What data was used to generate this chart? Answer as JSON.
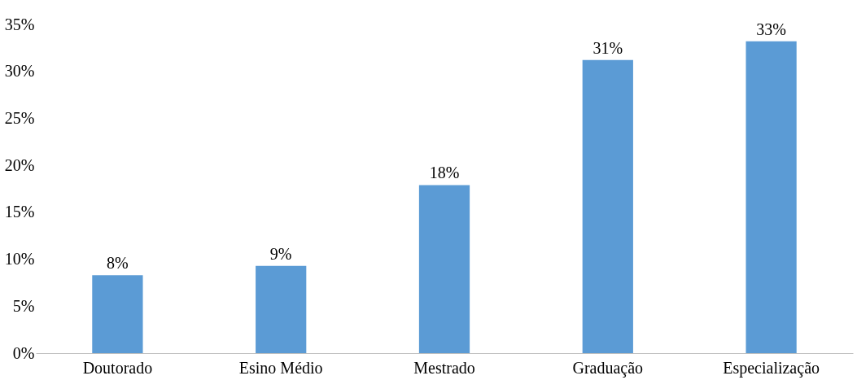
{
  "chart_data": {
    "type": "bar",
    "categories": [
      "Doutorado",
      "Esino Médio",
      "Mestrado",
      "Graduação",
      "Especialização"
    ],
    "values": [
      8.3,
      9.3,
      17.9,
      31.2,
      33.2
    ],
    "value_labels": [
      "8%",
      "9%",
      "18%",
      "31%",
      "33%"
    ],
    "color": "#5b9bd5",
    "ylim": [
      0,
      35
    ],
    "yticks": [
      {
        "value": 0,
        "label": "0%"
      },
      {
        "value": 5,
        "label": "5%"
      },
      {
        "value": 10,
        "label": "10%"
      },
      {
        "value": 15,
        "label": "15%"
      },
      {
        "value": 20,
        "label": "20%"
      },
      {
        "value": 25,
        "label": "25%"
      },
      {
        "value": 30,
        "label": "30%"
      },
      {
        "value": 35,
        "label": "35%"
      }
    ],
    "grid": false
  }
}
